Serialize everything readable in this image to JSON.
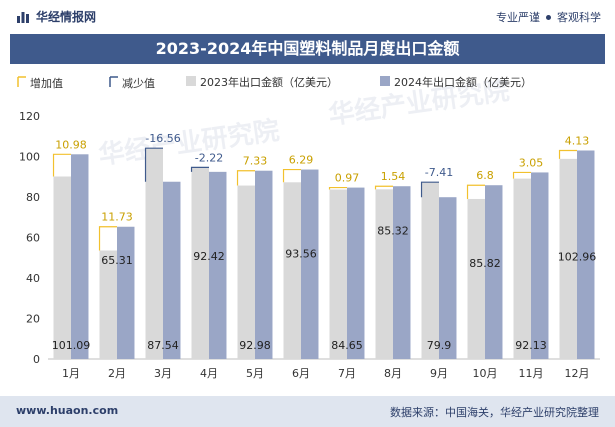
{
  "header": {
    "brand_name": "华经情报网",
    "tagline_left": "专业严谨",
    "tagline_right": "客观科学"
  },
  "footer": {
    "website": "www.huaon.com",
    "source": "数据来源：中国海关，华经产业研究院整理"
  },
  "watermark": "华经产业研究院",
  "colors": {
    "bar_2023": "#d9d9d9",
    "bar_2024": "#9aa6c6",
    "increase": "#f2c12e",
    "decrease": "#3f5a8c",
    "title_bg": "#3f5a8c"
  },
  "chart_data": {
    "type": "bar",
    "title": "2023-2024年中国塑料制品月度出口金额",
    "ylim": [
      0,
      120
    ],
    "yticks": [
      0,
      20,
      40,
      60,
      80,
      100,
      120
    ],
    "categories": [
      "1月",
      "2月",
      "3月",
      "4月",
      "5月",
      "6月",
      "7月",
      "8月",
      "9月",
      "10月",
      "11月",
      "12月"
    ],
    "legend": [
      "增加值",
      "减少值",
      "2023年出口金额（亿美元）",
      "2024年出口金额（亿美元）"
    ],
    "series": [
      {
        "name": "2023年出口金额（亿美元）",
        "values": [
          90.11,
          53.58,
          104.1,
          94.64,
          85.65,
          87.27,
          83.68,
          83.78,
          87.31,
          79.02,
          89.08,
          98.83
        ]
      },
      {
        "name": "2024年出口金额（亿美元）",
        "values": [
          101.09,
          65.31,
          87.54,
          92.42,
          92.98,
          93.56,
          84.65,
          85.32,
          79.9,
          85.82,
          92.13,
          102.96
        ]
      }
    ],
    "changes": [
      10.98,
      11.73,
      -16.56,
      -2.22,
      7.33,
      6.29,
      0.97,
      1.54,
      -7.41,
      6.8,
      3.05,
      4.13
    ],
    "change_labels": [
      "10.98",
      "11.73",
      "-16.56",
      "-2.22",
      "7.33",
      "6.29",
      "0.97",
      "1.54",
      "-7.41",
      "6.8",
      "3.05",
      "4.13"
    ],
    "value_labels_2024": [
      "101.09",
      "65.31",
      "87.54",
      "92.42",
      "92.98",
      "93.56",
      "84.65",
      "85.32",
      "79.9",
      "85.82",
      "92.13",
      "102.96"
    ]
  }
}
